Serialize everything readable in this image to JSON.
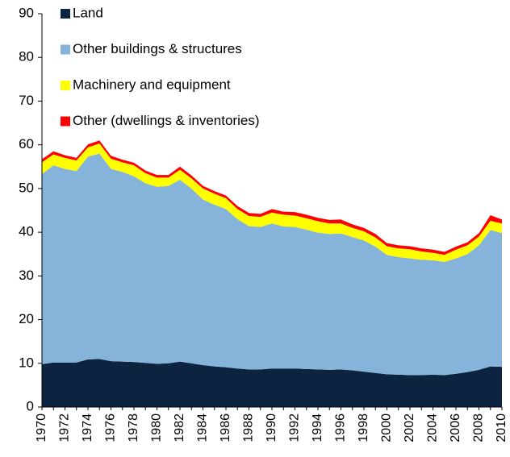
{
  "chart_data": {
    "type": "stacked_area",
    "categories": [
      "1970",
      null,
      "1972",
      null,
      "1974",
      null,
      "1976",
      null,
      "1978",
      null,
      "1980",
      null,
      "1982",
      null,
      "1984",
      null,
      "1986",
      null,
      "1988",
      null,
      "1990",
      null,
      "1992",
      null,
      "1994",
      null,
      "1996",
      null,
      "1998",
      null,
      "2000",
      null,
      "2002",
      null,
      "2004",
      null,
      "2006",
      null,
      "2008",
      null,
      "2010"
    ],
    "series": [
      {
        "name": "Land",
        "color": "#0d2441",
        "values": [
          9.8,
          10.2,
          10.2,
          10.2,
          10.9,
          11.0,
          10.5,
          10.4,
          10.3,
          10.1,
          9.9,
          10.0,
          10.4,
          10.0,
          9.6,
          9.3,
          9.1,
          8.8,
          8.6,
          8.6,
          8.8,
          8.8,
          8.8,
          8.7,
          8.6,
          8.5,
          8.6,
          8.4,
          8.1,
          7.8,
          7.5,
          7.4,
          7.3,
          7.3,
          7.4,
          7.3,
          7.6,
          8.0,
          8.5,
          9.3,
          9.2
        ]
      },
      {
        "name": "Other buildings & structures",
        "color": "#85b3d9",
        "values": [
          43.5,
          45.1,
          44.3,
          43.8,
          46.4,
          47.0,
          44.0,
          43.4,
          42.5,
          41.1,
          40.5,
          40.6,
          41.6,
          40.0,
          37.9,
          37.0,
          36.2,
          34.2,
          32.8,
          32.6,
          33.2,
          32.5,
          32.4,
          31.9,
          31.3,
          31.1,
          31.1,
          30.5,
          30.0,
          28.9,
          27.3,
          26.9,
          26.7,
          26.4,
          26.2,
          25.9,
          26.4,
          27.0,
          28.5,
          31.2,
          30.6
        ]
      },
      {
        "name": "Machinery and equipment",
        "color": "#ffff00",
        "values": [
          2.7,
          2.5,
          2.5,
          2.4,
          2.1,
          2.3,
          2.3,
          2.2,
          2.5,
          2.3,
          2.1,
          1.9,
          2.3,
          2.3,
          2.5,
          2.5,
          2.5,
          2.3,
          2.3,
          2.3,
          2.5,
          2.7,
          2.6,
          2.6,
          2.6,
          2.4,
          2.3,
          2.1,
          2.1,
          2.1,
          2.0,
          2.0,
          2.1,
          1.9,
          1.7,
          1.6,
          2.0,
          2.0,
          2.0,
          2.1,
          2.2
        ]
      },
      {
        "name": "Other (dwellings & inventories)",
        "color": "#ff0000",
        "values": [
          0.7,
          0.7,
          0.6,
          0.6,
          0.7,
          0.7,
          0.7,
          0.6,
          0.6,
          0.6,
          0.6,
          0.6,
          0.7,
          0.7,
          0.6,
          0.6,
          0.6,
          0.7,
          0.7,
          0.7,
          0.8,
          0.7,
          0.8,
          0.8,
          0.8,
          0.8,
          0.9,
          0.8,
          0.8,
          0.8,
          0.7,
          0.7,
          0.7,
          0.7,
          0.7,
          0.7,
          0.7,
          0.7,
          0.8,
          1.3,
          0.9
        ]
      }
    ],
    "ylim": [
      0,
      90
    ],
    "yticks": [
      0,
      10,
      20,
      30,
      40,
      50,
      60,
      70,
      80,
      90
    ],
    "legend": "upper left"
  }
}
